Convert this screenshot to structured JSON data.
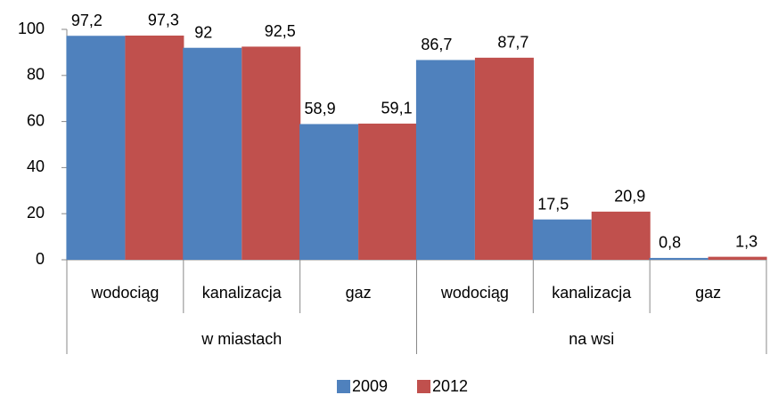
{
  "chart_data": {
    "type": "bar",
    "groups": [
      {
        "label": "w miastach",
        "categories": [
          "wodociąg",
          "kanalizacja",
          "gaz"
        ]
      },
      {
        "label": "na wsi",
        "categories": [
          "wodociąg",
          "kanalizacja",
          "gaz"
        ]
      }
    ],
    "series": [
      {
        "name": "2009",
        "color": "#4f81bd",
        "values": [
          97.2,
          92,
          58.9,
          86.7,
          17.5,
          0.8
        ],
        "value_labels": [
          "97,2",
          "92",
          "58,9",
          "86,7",
          "17,5",
          "0,8"
        ]
      },
      {
        "name": "2012",
        "color": "#c0504d",
        "values": [
          97.3,
          92.5,
          59.1,
          87.7,
          20.9,
          1.3
        ],
        "value_labels": [
          "97,3",
          "92,5",
          "59,1",
          "87,7",
          "20,9",
          "1,3"
        ]
      }
    ],
    "ylim": [
      0,
      100
    ],
    "yticks": [
      0,
      20,
      40,
      60,
      80,
      100
    ],
    "grid": false,
    "legend": "bottom"
  }
}
